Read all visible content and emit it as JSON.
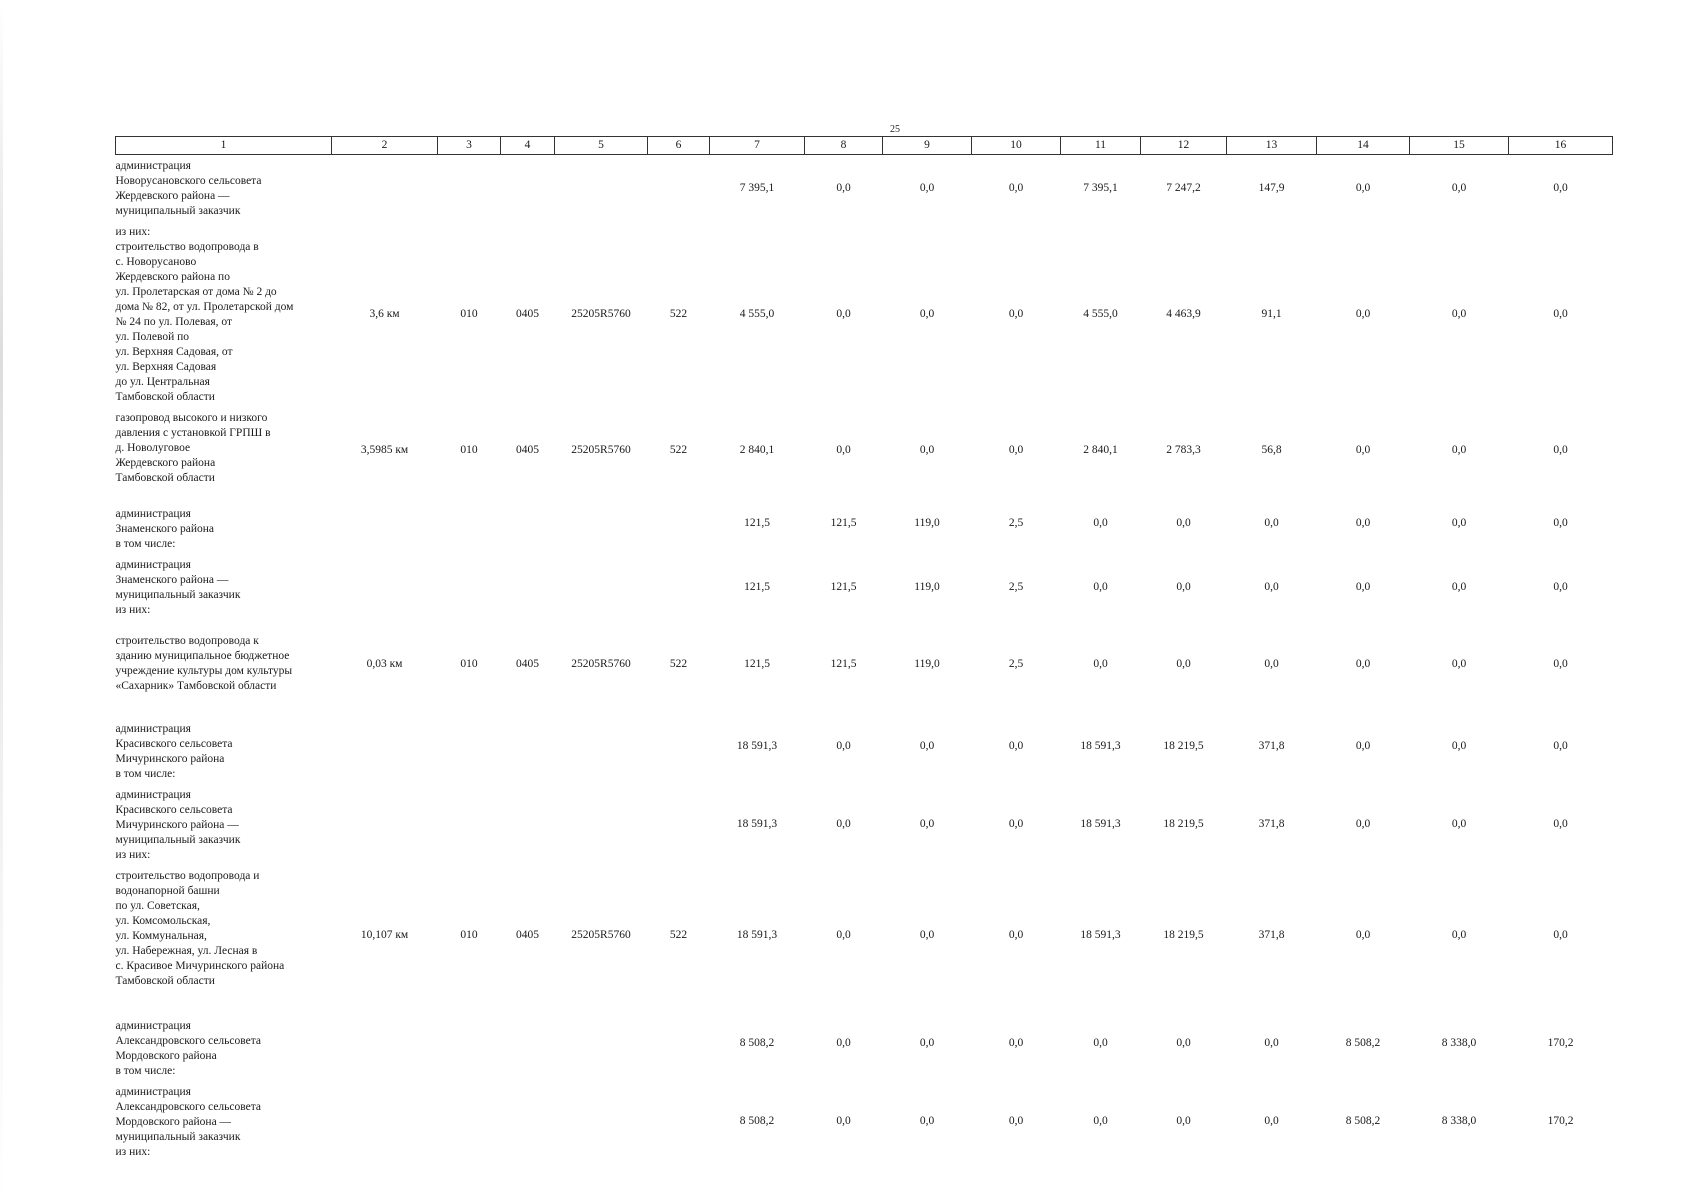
{
  "page_number": "25",
  "columns": [
    "1",
    "2",
    "3",
    "4",
    "5",
    "6",
    "7",
    "8",
    "9",
    "10",
    "11",
    "12",
    "13",
    "14",
    "15",
    "16"
  ],
  "rows": [
    {
      "cells": [
        "администрация\nНоворусановского сельсовета\nЖердевского района —\nмуниципальный заказчик",
        "",
        "",
        "",
        "",
        "",
        "7 395,1",
        "0,0",
        "0,0",
        "0,0",
        "7 395,1",
        "7 247,2",
        "147,9",
        "0,0",
        "0,0",
        "0,0"
      ]
    },
    {
      "cells": [
        "из них:\nстроительство водопровода в\nс. Новорусаново\nЖердевского района по\nул. Пролетарская от дома № 2 до\nдома № 82, от ул. Пролетарской дом\n№ 24 по ул. Полевая, от\nул. Полевой по\nул. Верхняя Садовая, от\nул. Верхняя Садовая\nдо ул. Центральная\nТамбовской области",
        "3,6 км",
        "010",
        "0405",
        "25205R5760",
        "522",
        "4 555,0",
        "0,0",
        "0,0",
        "0,0",
        "4 555,0",
        "4 463,9",
        "91,1",
        "0,0",
        "0,0",
        "0,0"
      ]
    },
    {
      "cells": [
        "газопровод высокого и низкого\nдавления с установкой ГРПШ в\nд. Новолуговое\nЖердевского района\nТамбовской области",
        "3,5985 км",
        "010",
        "0405",
        "25205R5760",
        "522",
        "2 840,1",
        "0,0",
        "0,0",
        "0,0",
        "2 840,1",
        "2 783,3",
        "56,8",
        "0,0",
        "0,0",
        "0,0"
      ]
    },
    {
      "cells": [
        "администрация\nЗнаменского района\nв том числе:",
        "",
        "",
        "",
        "",
        "",
        "121,5",
        "121,5",
        "119,0",
        "2,5",
        "0,0",
        "0,0",
        "0,0",
        "0,0",
        "0,0",
        "0,0"
      ]
    },
    {
      "cells": [
        "администрация\nЗнаменского района —\nмуниципальный заказчик\nиз них:",
        "",
        "",
        "",
        "",
        "",
        "121,5",
        "121,5",
        "119,0",
        "2,5",
        "0,0",
        "0,0",
        "0,0",
        "0,0",
        "0,0",
        "0,0"
      ]
    },
    {
      "cells": [
        "строительство водопровода к\nзданию муниципальное бюджетное\nучреждение культуры дом культуры\n«Сахарник» Тамбовской области",
        "0,03 км",
        "010",
        "0405",
        "25205R5760",
        "522",
        "121,5",
        "121,5",
        "119,0",
        "2,5",
        "0,0",
        "0,0",
        "0,0",
        "0,0",
        "0,0",
        "0,0"
      ]
    },
    {
      "cells": [
        "администрация\nКрасивского сельсовета\nМичуринского района\nв том числе:",
        "",
        "",
        "",
        "",
        "",
        "18 591,3",
        "0,0",
        "0,0",
        "0,0",
        "18 591,3",
        "18 219,5",
        "371,8",
        "0,0",
        "0,0",
        "0,0"
      ]
    },
    {
      "cells": [
        "администрация\nКрасивского сельсовета\nМичуринского района —\nмуниципальный заказчик\nиз них:",
        "",
        "",
        "",
        "",
        "",
        "18 591,3",
        "0,0",
        "0,0",
        "0,0",
        "18 591,3",
        "18 219,5",
        "371,8",
        "0,0",
        "0,0",
        "0,0"
      ]
    },
    {
      "cells": [
        "строительство водопровода и\nводонапорной башни\nпо ул. Советская,\nул. Комсомольская,\nул. Коммунальная,\nул. Набережная, ул. Лесная в\nс. Красивое Мичуринского района\nТамбовской области",
        "10,107 км",
        "010",
        "0405",
        "25205R5760",
        "522",
        "18 591,3",
        "0,0",
        "0,0",
        "0,0",
        "18 591,3",
        "18 219,5",
        "371,8",
        "0,0",
        "0,0",
        "0,0"
      ]
    },
    {
      "cells": [
        "администрация\nАлександровского сельсовета\nМордовского района\nв том числе:",
        "",
        "",
        "",
        "",
        "",
        "8 508,2",
        "0,0",
        "0,0",
        "0,0",
        "0,0",
        "0,0",
        "0,0",
        "8 508,2",
        "8 338,0",
        "170,2"
      ]
    },
    {
      "cells": [
        "администрация\nАлександровского сельсовета\nМордовского района —\nмуниципальный заказчик\nиз них:",
        "",
        "",
        "",
        "",
        "",
        "8 508,2",
        "0,0",
        "0,0",
        "0,0",
        "0,0",
        "0,0",
        "0,0",
        "8 508,2",
        "8 338,0",
        "170,2"
      ]
    }
  ]
}
